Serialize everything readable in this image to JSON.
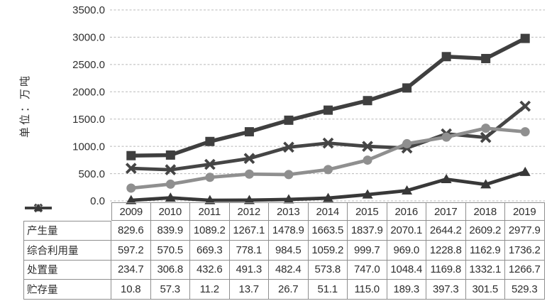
{
  "figure": {
    "y_axis_label": "单位：万吨",
    "y_tick_labels": [
      "3500.0",
      "3000.0",
      "2500.0",
      "2000.0",
      "1500.0",
      "1000.0",
      "500.0",
      "0.0"
    ]
  },
  "chart_data": {
    "type": "line",
    "title": "",
    "xlabel": "",
    "ylabel": "单位：万吨",
    "ylim": [
      0,
      3500
    ],
    "ytick_step": 500,
    "grid": true,
    "legend_position": "table-left-column",
    "categories": [
      "2009",
      "2010",
      "2011",
      "2012",
      "2013",
      "2014",
      "2015",
      "2016",
      "2017",
      "2018",
      "2019"
    ],
    "series": [
      {
        "name": "产生量",
        "marker": "square",
        "color": "#3f3f3f",
        "values": [
          829.6,
          839.9,
          1089.2,
          1267.1,
          1478.9,
          1663.5,
          1837.9,
          2070.1,
          2644.2,
          2609.2,
          2977.9
        ]
      },
      {
        "name": "综合利用量",
        "marker": "x",
        "color": "#454545",
        "values": [
          597.2,
          570.5,
          669.3,
          778.1,
          984.5,
          1059.2,
          999.7,
          969.0,
          1228.8,
          1162.9,
          1736.2
        ]
      },
      {
        "name": "处置量",
        "marker": "circle",
        "color": "#8f8f8f",
        "values": [
          234.7,
          306.8,
          432.6,
          491.3,
          482.4,
          573.8,
          747.0,
          1048.4,
          1169.8,
          1332.1,
          1266.7
        ]
      },
      {
        "name": "贮存量",
        "marker": "triangle",
        "color": "#383838",
        "values": [
          10.8,
          57.3,
          11.2,
          13.7,
          26.7,
          51.1,
          115.0,
          189.3,
          397.3,
          301.5,
          529.3
        ]
      }
    ],
    "colors": {
      "gridline": "#b8b8b8",
      "table_border": "#8f8f8f",
      "text": "#2e2e2e",
      "background": "#ffffff"
    }
  }
}
